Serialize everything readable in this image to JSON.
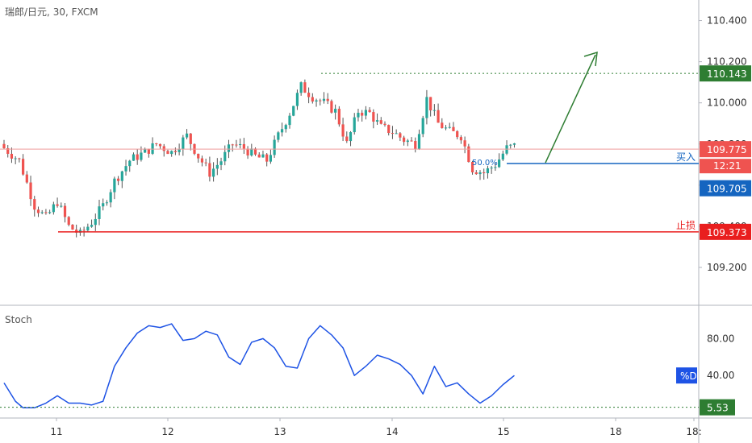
{
  "header": {
    "symbol": "瑞郎/日元",
    "interval": "30",
    "exchange": "FXCM"
  },
  "indicator": {
    "name": "Stoch",
    "series_label": "%D"
  },
  "labels": {
    "buy": "买入",
    "stop": "止损",
    "fib": "50.0%",
    "countdown": "12:21"
  },
  "colors": {
    "up": "#26a69a",
    "down": "#ef5350",
    "buy_line": "#1565c0",
    "stop_line": "#e91e1e",
    "target": "#2e7d32",
    "stoch_line": "#1e53e5",
    "price_line": "#ef9a9a"
  },
  "chart_data": [
    {
      "type": "candlestick",
      "title": "瑞郎/日元, 30, FXCM",
      "x_ticks": [
        "11",
        "12",
        "13",
        "14",
        "15",
        "18",
        "18:"
      ],
      "y_ticks": [
        110.4,
        110.2,
        110.0,
        109.8,
        109.6,
        109.4,
        109.2
      ],
      "ylim": [
        109.02,
        110.5
      ],
      "levels": {
        "target": 110.143,
        "last": 109.775,
        "buy": 109.705,
        "stop": 109.373
      },
      "axis_labels": [
        "110.143",
        "109.775",
        "109.705",
        "109.373"
      ],
      "close_path": [
        [
          0,
          109.78
        ],
        [
          4,
          109.72
        ],
        [
          8,
          109.5
        ],
        [
          11,
          109.44
        ],
        [
          14,
          109.52
        ],
        [
          17,
          109.4
        ],
        [
          20,
          109.36
        ],
        [
          23,
          109.42
        ],
        [
          26,
          109.5
        ],
        [
          29,
          109.62
        ],
        [
          33,
          109.72
        ],
        [
          37,
          109.76
        ],
        [
          40,
          109.8
        ],
        [
          44,
          109.76
        ],
        [
          48,
          109.84
        ],
        [
          51,
          109.74
        ],
        [
          54,
          109.66
        ],
        [
          57,
          109.72
        ],
        [
          60,
          109.8
        ],
        [
          63,
          109.78
        ],
        [
          66,
          109.74
        ],
        [
          69,
          109.72
        ],
        [
          72,
          109.84
        ],
        [
          75,
          109.95
        ],
        [
          78,
          110.08
        ],
        [
          81,
          110.03
        ],
        [
          84,
          110.0
        ],
        [
          87,
          109.96
        ],
        [
          90,
          109.8
        ],
        [
          93,
          109.96
        ],
        [
          96,
          109.95
        ],
        [
          99,
          109.88
        ],
        [
          102,
          109.86
        ],
        [
          105,
          109.82
        ],
        [
          108,
          109.8
        ],
        [
          111,
          110.02
        ],
        [
          114,
          109.9
        ],
        [
          117,
          109.86
        ],
        [
          120,
          109.84
        ],
        [
          123,
          109.68
        ],
        [
          126,
          109.66
        ],
        [
          129,
          109.7
        ],
        [
          132,
          109.78
        ],
        [
          134,
          109.79
        ]
      ],
      "n_candles": 135
    },
    {
      "type": "line",
      "title": "Stoch",
      "series": [
        {
          "name": "%D",
          "values": [
            [
              0,
              32
            ],
            [
              3,
              12
            ],
            [
              5,
              5
            ],
            [
              8,
              5
            ],
            [
              11,
              10
            ],
            [
              14,
              18
            ],
            [
              17,
              10
            ],
            [
              20,
              10
            ],
            [
              23,
              8
            ],
            [
              26,
              12
            ],
            [
              29,
              50
            ],
            [
              32,
              70
            ],
            [
              35,
              86
            ],
            [
              38,
              94
            ],
            [
              41,
              92
            ],
            [
              44,
              96
            ],
            [
              47,
              78
            ],
            [
              50,
              80
            ],
            [
              53,
              88
            ],
            [
              56,
              84
            ],
            [
              59,
              60
            ],
            [
              62,
              52
            ],
            [
              65,
              76
            ],
            [
              68,
              80
            ],
            [
              71,
              70
            ],
            [
              74,
              50
            ],
            [
              77,
              48
            ],
            [
              80,
              80
            ],
            [
              83,
              94
            ],
            [
              86,
              84
            ],
            [
              89,
              70
            ],
            [
              92,
              40
            ],
            [
              95,
              50
            ],
            [
              98,
              62
            ],
            [
              101,
              58
            ],
            [
              104,
              52
            ],
            [
              107,
              40
            ],
            [
              110,
              20
            ],
            [
              113,
              50
            ],
            [
              116,
              28
            ],
            [
              119,
              32
            ],
            [
              122,
              20
            ],
            [
              125,
              10
            ],
            [
              128,
              18
            ],
            [
              131,
              30
            ],
            [
              134,
              40
            ]
          ]
        }
      ],
      "y_ticks": [
        80,
        40
      ],
      "ylim": [
        0,
        110
      ],
      "last_value": 40.0,
      "level_label": "5.53",
      "level_value": 5.53,
      "axis_labels": [
        "80.00",
        "40.00"
      ]
    }
  ]
}
